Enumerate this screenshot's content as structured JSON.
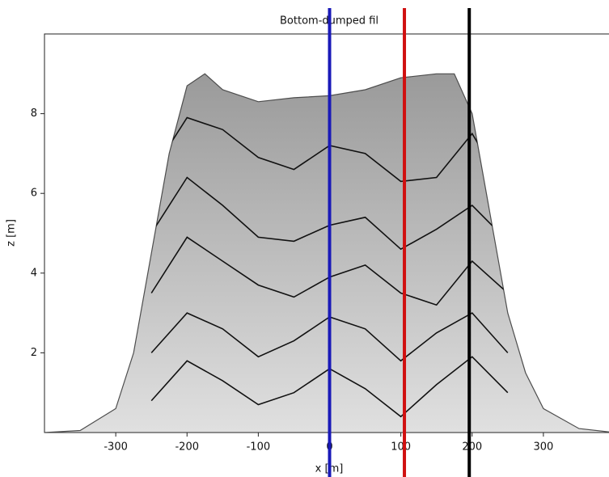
{
  "chart_data": {
    "type": "layered-fill",
    "title": "Bottom-dumped fil",
    "xlabel": "x [m]",
    "ylabel": "z [m]",
    "xlim": [
      -400,
      400
    ],
    "ylim": [
      0,
      10
    ],
    "xticks": [
      -300,
      -200,
      -100,
      0,
      100,
      200,
      300
    ],
    "yticks": [
      2,
      4,
      6,
      8
    ],
    "surface": {
      "x": [
        -400,
        -350,
        -300,
        -275,
        -250,
        -225,
        -200,
        -175,
        -150,
        -100,
        -50,
        0,
        50,
        100,
        150,
        175,
        200,
        225,
        250,
        275,
        300,
        350,
        400
      ],
      "values": [
        0,
        0.05,
        0.6,
        2,
        4.5,
        7,
        8.7,
        9.0,
        8.6,
        8.3,
        8.4,
        8.45,
        8.6,
        8.9,
        9.0,
        9.0,
        8.0,
        5.5,
        3,
        1.5,
        0.6,
        0.1,
        0
      ],
      "color": "#4d4d4d"
    },
    "layers": [
      {
        "x": [
          -250,
          -200,
          -150,
          -100,
          -50,
          0,
          50,
          100,
          150,
          200,
          250
        ],
        "values": [
          0.8,
          1.8,
          1.3,
          0.7,
          1.0,
          1.6,
          1.1,
          0.4,
          1.2,
          1.9,
          1.0
        ]
      },
      {
        "x": [
          -250,
          -200,
          -150,
          -100,
          -50,
          0,
          50,
          100,
          150,
          200,
          250
        ],
        "values": [
          2.0,
          3.0,
          2.6,
          1.9,
          2.3,
          2.9,
          2.6,
          1.8,
          2.5,
          3.0,
          2.0
        ]
      },
      {
        "x": [
          -250,
          -200,
          -150,
          -100,
          -50,
          0,
          50,
          100,
          150,
          200,
          250
        ],
        "values": [
          3.5,
          4.9,
          4.3,
          3.7,
          3.4,
          3.9,
          4.2,
          3.5,
          3.2,
          4.3,
          3.5
        ]
      },
      {
        "x": [
          -250,
          -200,
          -150,
          -100,
          -50,
          0,
          50,
          100,
          150,
          200,
          250
        ],
        "values": [
          5.0,
          6.4,
          5.7,
          4.9,
          4.8,
          5.2,
          5.4,
          4.6,
          5.1,
          5.7,
          4.8
        ]
      },
      {
        "x": [
          -250,
          -200,
          -150,
          -100,
          -50,
          0,
          50,
          100,
          150,
          200,
          250
        ],
        "values": [
          6.5,
          7.9,
          7.6,
          6.9,
          6.6,
          7.2,
          7.0,
          6.3,
          6.4,
          7.5,
          6.0
        ]
      }
    ],
    "layer_color": "#111111",
    "vlines": [
      {
        "x": 0,
        "color": "#1a1ab8"
      },
      {
        "x": 105,
        "color": "#d01010"
      },
      {
        "x": 196,
        "color": "#000000"
      }
    ]
  }
}
